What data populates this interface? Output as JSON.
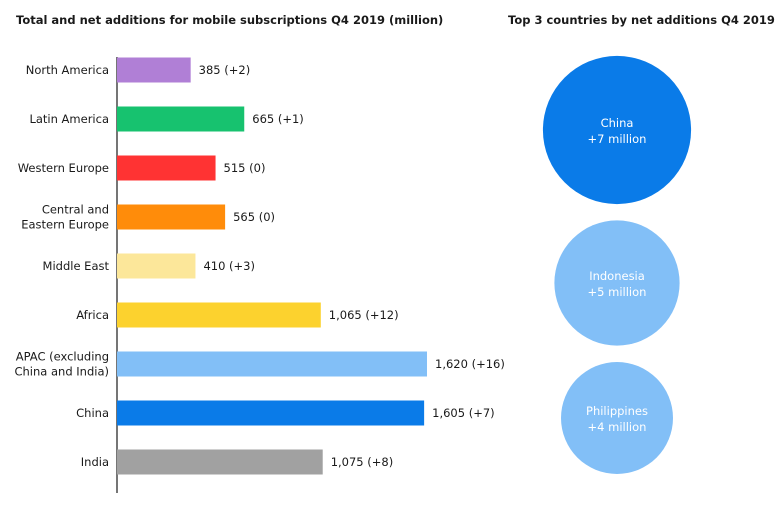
{
  "left_title": "Total and net additions for mobile subscriptions Q4 2019 (million)",
  "right_title": "Top 3 countries by net additions Q4 2019",
  "chart_data": [
    {
      "type": "bar",
      "orientation": "horizontal",
      "title": "Total and net additions for mobile subscriptions Q4 2019 (million)",
      "categories": [
        [
          "North America"
        ],
        [
          "Latin America"
        ],
        [
          "Western Europe"
        ],
        [
          "Central and",
          "Eastern Europe"
        ],
        [
          "Middle East"
        ],
        [
          "Africa"
        ],
        [
          "APAC (excluding",
          "China and India)"
        ],
        [
          "China"
        ],
        [
          "India"
        ]
      ],
      "values": [
        385,
        665,
        515,
        565,
        410,
        1065,
        1620,
        1605,
        1075
      ],
      "net_additions": [
        2,
        1,
        0,
        0,
        3,
        12,
        16,
        7,
        8
      ],
      "labels": [
        "385 (+2)",
        "665 (+1)",
        "515 (0)",
        "565 (0)",
        "410 (+3)",
        "1,065 (+12)",
        "1,620 (+16)",
        "1,605 (+7)",
        "1,075 (+8)"
      ],
      "colors": [
        "#b07fd6",
        "#17c26f",
        "#ff3333",
        "#ff8c0a",
        "#fce79a",
        "#fcd22e",
        "#82bff7",
        "#0a7be8",
        "#a1a1a1"
      ],
      "xlim": [
        0,
        1620
      ],
      "grid": false,
      "legend": "none"
    },
    {
      "type": "bubble",
      "title": "Top 3 countries by net additions Q4 2019",
      "items": [
        {
          "country": "China",
          "net_additions_million": 7,
          "label": "+7 million",
          "color": "#0a7be8"
        },
        {
          "country": "Indonesia",
          "net_additions_million": 5,
          "label": "+5 million",
          "color": "#82bff7"
        },
        {
          "country": "Philippines",
          "net_additions_million": 4,
          "label": "+4 million",
          "color": "#82bff7"
        }
      ]
    }
  ]
}
